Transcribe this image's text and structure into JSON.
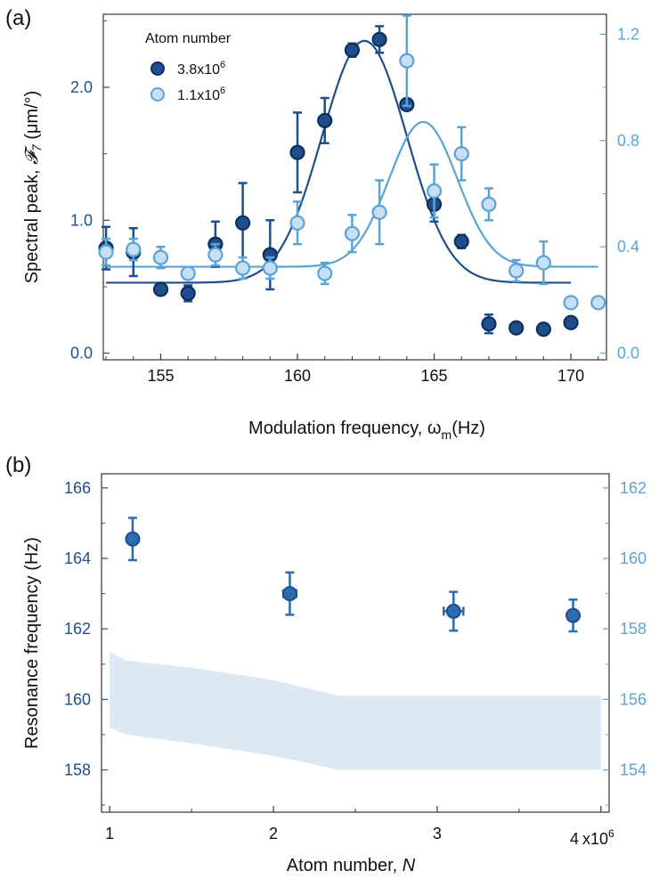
{
  "chart_data": [
    {
      "panel_label": "(a)",
      "type": "scatter",
      "xlabel": "Modulation frequency, ωm(Hz)",
      "xlabel_main": "Modulation frequency, ω",
      "xlabel_sub": "m",
      "xlabel_tail": "(Hz)",
      "ylabel": "Spectral peak, 𝓕7 (μm/°)",
      "xlim": [
        152.9,
        171.3
      ],
      "ylim_left": [
        -0.05,
        2.55
      ],
      "ylim_right": [
        -0.025,
        1.275
      ],
      "x_ticks": [
        155,
        160,
        165,
        170
      ],
      "x_tick_labels": [
        "155",
        "160",
        "165",
        "170"
      ],
      "y_left_ticks": [
        0,
        1,
        2
      ],
      "y_left_tick_labels": [
        "0.0",
        "1.0",
        "2.0"
      ],
      "y_right_ticks": [
        0,
        0.4,
        0.8,
        1.2
      ],
      "y_right_tick_labels": [
        "0.0",
        "0.4",
        "0.8",
        "1.2"
      ],
      "legend_title": "Atom number",
      "legend_position": "top-left",
      "series": [
        {
          "name": "3.8x10^6",
          "name_base": "3.8x10",
          "name_exp": "6",
          "axis": "left",
          "color": "#1f4e8c",
          "x": [
            153,
            154,
            155,
            156,
            157,
            158,
            159,
            160,
            161,
            162,
            163,
            164,
            165,
            166,
            167,
            168,
            169,
            170
          ],
          "y": [
            0.79,
            0.76,
            0.48,
            0.45,
            0.82,
            0.98,
            0.74,
            1.51,
            1.75,
            2.28,
            2.36,
            1.87,
            1.12,
            0.84,
            0.22,
            0.19,
            0.18,
            0.23
          ],
          "err": [
            0.16,
            0.18,
            0.02,
            0.06,
            0.17,
            0.3,
            0.26,
            0.3,
            0.17,
            0.05,
            0.1,
            0.04,
            0.13,
            0.05,
            0.07,
            0.02,
            0.02,
            0.02
          ],
          "fit": {
            "baseline": 0.53,
            "amplitude": 1.82,
            "center": 162.45,
            "sigma": 1.55
          }
        },
        {
          "name": "1.1x10^6",
          "name_base": "1.1x10",
          "name_exp": "6",
          "axis": "right",
          "color": "#5aa3d6",
          "fill": "#c8def2",
          "x": [
            153,
            154,
            155,
            156,
            157,
            158,
            159,
            160,
            161,
            162,
            163,
            164,
            165,
            166,
            167,
            168,
            169,
            170,
            171
          ],
          "y": [
            0.38,
            0.39,
            0.36,
            0.3,
            0.37,
            0.32,
            0.32,
            0.49,
            0.3,
            0.45,
            0.53,
            1.1,
            0.61,
            0.75,
            0.56,
            0.31,
            0.34,
            0.19,
            0.19
          ],
          "err": [
            0.05,
            0.04,
            0.04,
            0.02,
            0.04,
            0.04,
            0.04,
            0.08,
            0.04,
            0.07,
            0.12,
            0.17,
            0.1,
            0.1,
            0.06,
            0.04,
            0.08,
            0.0,
            0.0
          ],
          "fit": {
            "baseline": 0.325,
            "amplitude": 0.545,
            "center": 164.6,
            "sigma": 1.25
          }
        }
      ]
    },
    {
      "panel_label": "(b)",
      "type": "scatter",
      "xlabel": "Atom number, N",
      "xlabel_main": "Atom number, ",
      "xlabel_var": "N",
      "ylabel": "Resonance frequency (Hz)",
      "xlim": [
        0.95,
        4.05
      ],
      "ylim_left": [
        156.8,
        166.4
      ],
      "ylim_right": [
        152.8,
        162.4
      ],
      "x_ticks": [
        1,
        2,
        3,
        4
      ],
      "x_tick_labels": [
        "1",
        "2",
        "3",
        "4"
      ],
      "x_scale_label": "x10",
      "x_scale_exp": "6",
      "y_left_ticks": [
        158,
        160,
        162,
        164,
        166
      ],
      "y_left_tick_labels": [
        "158",
        "160",
        "162",
        "164",
        "166"
      ],
      "y_right_ticks": [
        154,
        156,
        158,
        160,
        162
      ],
      "y_right_tick_labels": [
        "154",
        "156",
        "158",
        "160",
        "162"
      ],
      "series": [
        {
          "axis": "left",
          "color": "#2c6bb0",
          "x": [
            1.14,
            2.1,
            3.1,
            3.83
          ],
          "y": [
            164.55,
            163.0,
            162.5,
            162.38
          ],
          "yerr": [
            0.6,
            0.6,
            0.55,
            0.45
          ],
          "xerr": [
            0.0,
            0.04,
            0.06,
            0.03
          ]
        }
      ],
      "band": {
        "color": "#dce8f4",
        "x": [
          1.0,
          1.1,
          1.5,
          2.0,
          2.4,
          3.0,
          4.0
        ],
        "upper": [
          161.35,
          161.1,
          160.9,
          160.55,
          160.1,
          160.1,
          160.1
        ],
        "lower": [
          159.2,
          159.0,
          158.75,
          158.4,
          158.0,
          158.0,
          158.0
        ]
      }
    }
  ]
}
